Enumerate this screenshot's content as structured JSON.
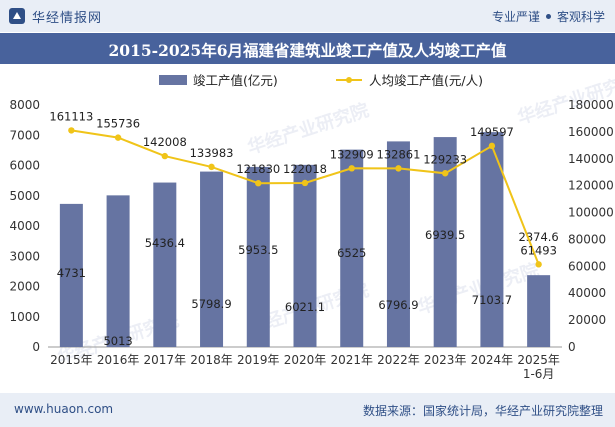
{
  "header": {
    "brand_name": "华经情报网",
    "tag_1": "专业严谨",
    "tag_2": "客观科学"
  },
  "title": "2015-2025年6月福建省建筑业竣工产值及人均竣工产值",
  "footer": {
    "url": "www.huaon.com",
    "source": "数据来源：国家统计局，华经产业研究院整理"
  },
  "watermark": "华经产业研究院",
  "colors": {
    "bar": "#6674a2",
    "line": "#f0c419",
    "title_bg": "#48629c",
    "band_bg": "#e9eef6"
  },
  "chart_data": {
    "type": "bar",
    "categories": [
      "2015年",
      "2016年",
      "2017年",
      "2018年",
      "2019年",
      "2020年",
      "2021年",
      "2022年",
      "2023年",
      "2024年",
      "2025年\n1-6月"
    ],
    "series": [
      {
        "name": "竣工产值(亿元)",
        "type": "bar",
        "axis": "left",
        "values": [
          4731,
          5013,
          5436.4,
          5798.9,
          5953.5,
          6021.1,
          6525,
          6796.9,
          6939.5,
          7103.7,
          2374.6
        ],
        "labels": [
          "4731",
          "5013",
          "5436.4",
          "5798.9",
          "5953.5",
          "6021.1",
          "6525",
          "6796.9",
          "6939.5",
          "7103.7",
          "2374.6"
        ]
      },
      {
        "name": "人均竣工产值(元/人)",
        "type": "line",
        "axis": "right",
        "values": [
          161113,
          155736,
          142008,
          133983,
          121830,
          122018,
          132909,
          132861,
          129233,
          149597,
          61493
        ],
        "labels": [
          "161113",
          "155736",
          "142008",
          "133983",
          "121830",
          "122018",
          "132909",
          "132861",
          "129233",
          "149597",
          "61493"
        ]
      }
    ],
    "y_left": {
      "min": 0,
      "max": 8000,
      "ticks": [
        "0",
        "1000",
        "2000",
        "3000",
        "4000",
        "5000",
        "6000",
        "7000",
        "8000"
      ]
    },
    "y_right": {
      "min": 0,
      "max": 180000,
      "ticks": [
        "0",
        "20000",
        "40000",
        "60000",
        "80000",
        "100000",
        "120000",
        "140000",
        "160000",
        "180000"
      ]
    },
    "legend_position": "top-center"
  }
}
